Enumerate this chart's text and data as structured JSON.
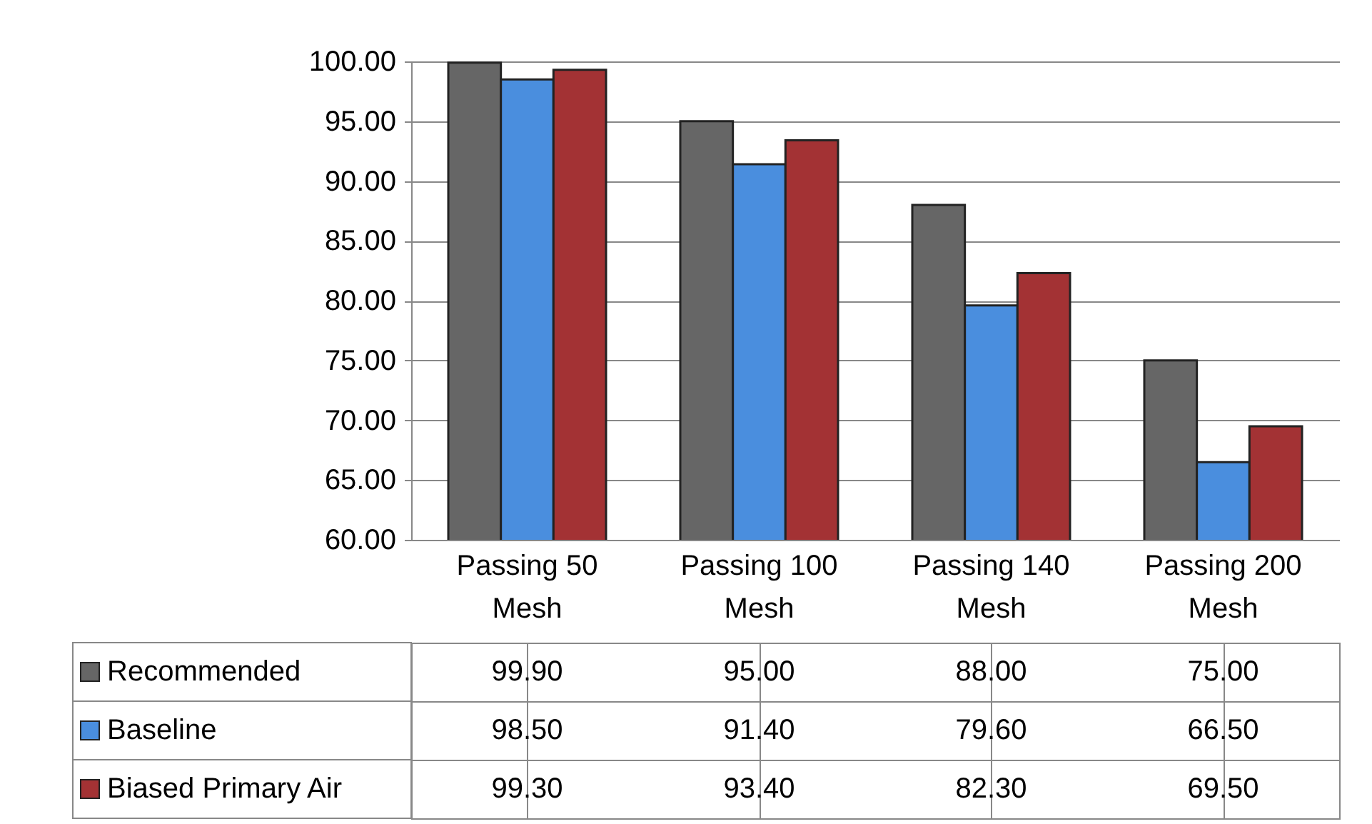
{
  "chart_data": {
    "type": "bar",
    "categories": [
      "Passing 50 Mesh",
      "Passing 100 Mesh",
      "Passing 140 Mesh",
      "Passing 200 Mesh"
    ],
    "series": [
      {
        "name": "Recommended",
        "color": "#666666",
        "values": [
          99.9,
          95.0,
          88.0,
          75.0
        ],
        "value_labels": [
          "99.90",
          "95.00",
          "88.00",
          "75.00"
        ]
      },
      {
        "name": "Baseline",
        "color": "#4a8ede",
        "values": [
          98.5,
          91.4,
          79.6,
          66.5
        ],
        "value_labels": [
          "98.50",
          "91.40",
          "79.60",
          "66.50"
        ]
      },
      {
        "name": "Biased Primary Air",
        "color": "#a33234",
        "values": [
          99.3,
          93.4,
          82.3,
          69.5
        ],
        "value_labels": [
          "99.30",
          "93.40",
          "82.30",
          "69.50"
        ]
      }
    ],
    "ylim": [
      60,
      100
    ],
    "yticks": [
      {
        "value": 60,
        "label": "60.00"
      },
      {
        "value": 65,
        "label": "65.00"
      },
      {
        "value": 70,
        "label": "70.00"
      },
      {
        "value": 75,
        "label": "75.00"
      },
      {
        "value": 80,
        "label": "80.00"
      },
      {
        "value": 85,
        "label": "85.00"
      },
      {
        "value": 90,
        "label": "90.00"
      },
      {
        "value": 95,
        "label": "95.00"
      },
      {
        "value": 100,
        "label": "100.00"
      }
    ],
    "grid": "y",
    "legend": "left"
  }
}
